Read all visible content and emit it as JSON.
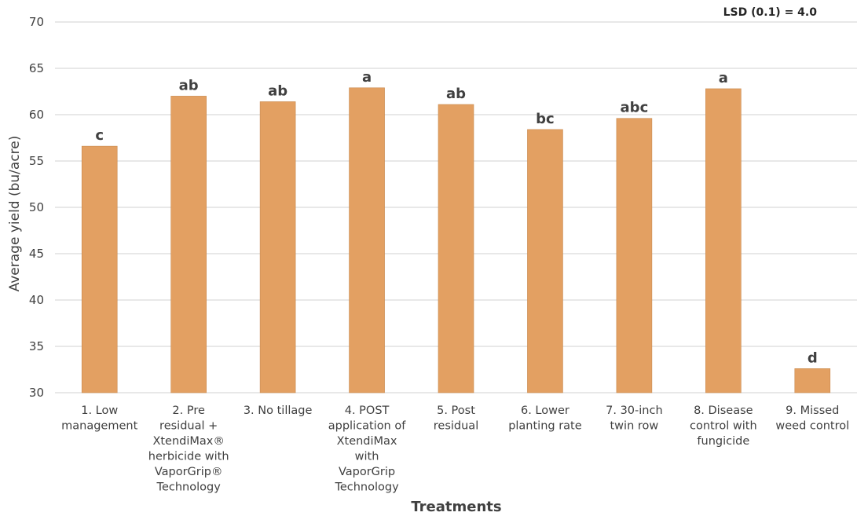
{
  "chart_data": {
    "type": "bar",
    "categories": [
      [
        "1. Low",
        "management"
      ],
      [
        "2. Pre",
        "residual +",
        "XtendiMax®",
        "herbicide with",
        "VaporGrip®",
        "Technology"
      ],
      [
        "3. No tillage"
      ],
      [
        "4. POST",
        "application of",
        "XtendiMax",
        "with",
        "VaporGrip",
        "Technology"
      ],
      [
        "5. Post",
        "residual"
      ],
      [
        "6. Lower",
        "planting rate"
      ],
      [
        "7. 30-inch",
        "twin row"
      ],
      [
        "8. Disease",
        "control with",
        "fungicide"
      ],
      [
        "9. Missed",
        "weed control"
      ]
    ],
    "values": [
      56.6,
      62.0,
      61.4,
      62.9,
      61.1,
      58.4,
      59.6,
      62.8,
      32.6
    ],
    "data_labels": [
      "c",
      "ab",
      "ab",
      "a",
      "ab",
      "bc",
      "abc",
      "a",
      "d"
    ],
    "ylabel": "Average yield (bu/acre)",
    "xlabel": "Treatments",
    "ylim": [
      30,
      70
    ],
    "yticks": [
      30,
      35,
      40,
      45,
      50,
      55,
      60,
      65,
      70
    ],
    "annotation": "LSD (0.1) = 4.0",
    "grid": true,
    "legend": "none",
    "bar_color": "#e3a062"
  }
}
